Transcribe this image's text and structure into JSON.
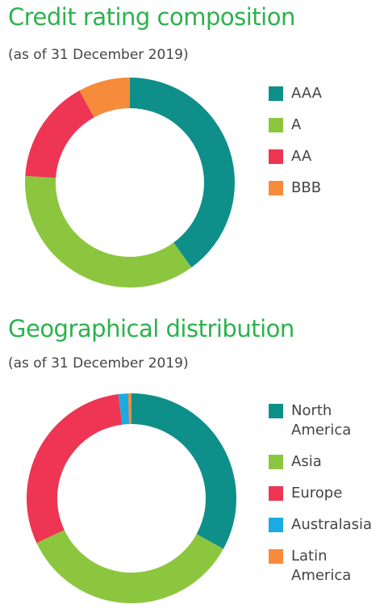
{
  "chart_data": [
    {
      "type": "donut",
      "title": "Credit rating composition",
      "subtitle": "(as of 31 December 2019)",
      "categories": [
        "AAA",
        "A",
        "AA",
        "BBB"
      ],
      "values": [
        40,
        36,
        16,
        8
      ],
      "colors": [
        "#0e8f8a",
        "#8cc63f",
        "#ee3553",
        "#f68b3c"
      ]
    },
    {
      "type": "donut",
      "title": "Geographical distribution",
      "subtitle": "(as of 31 December 2019)",
      "categories": [
        "North America",
        "Asia",
        "Europe",
        "Australasia",
        "Latin America"
      ],
      "values": [
        33,
        35,
        30,
        1.5,
        0.5
      ],
      "colors": [
        "#0e8f8a",
        "#8cc63f",
        "#ee3553",
        "#1aabe3",
        "#f68b3c"
      ]
    }
  ]
}
